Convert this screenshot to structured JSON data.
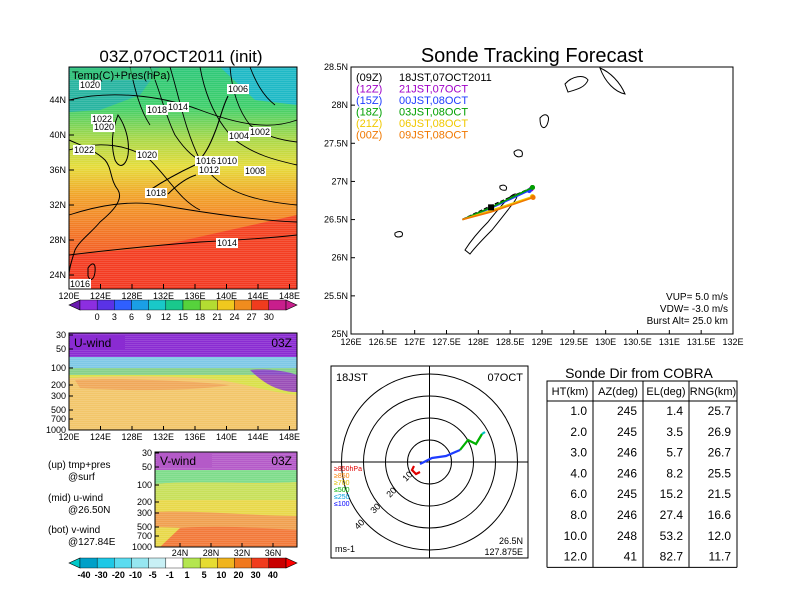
{
  "map_panel": {
    "title": "03Z,07OCT2011 (init)",
    "field_label": "Temp(C)+Pres(hPa)",
    "lat_labels": [
      "44N",
      "40N",
      "36N",
      "32N",
      "28N",
      "24N"
    ],
    "lon_labels": [
      "120E",
      "124E",
      "128E",
      "132E",
      "136E",
      "140E",
      "144E",
      "148E"
    ],
    "isobar_labels": [
      "1020",
      "1006",
      "1018",
      "1014",
      "1022",
      "1020",
      "1004",
      "1002",
      "1022",
      "1020",
      "1016",
      "1010",
      "1012",
      "1008",
      "1018",
      "1014",
      "1016"
    ],
    "colorbar_ticks": [
      "0",
      "3",
      "6",
      "9",
      "12",
      "15",
      "18",
      "21",
      "24",
      "27",
      "30"
    ]
  },
  "u_panel": {
    "label": "U-wind",
    "time": "03Z",
    "p_labels": [
      "30",
      "50",
      "100",
      "200",
      "300",
      "500",
      "700",
      "1000"
    ],
    "lon_labels": [
      "120E",
      "124E",
      "128E",
      "132E",
      "136E",
      "140E",
      "144E",
      "148E"
    ]
  },
  "v_panel": {
    "label": "V-wind",
    "time": "03Z",
    "p_labels": [
      "30",
      "50",
      "100",
      "200",
      "300",
      "500",
      "700",
      "1000"
    ],
    "lat_labels": [
      "24N",
      "28N",
      "32N",
      "36N"
    ]
  },
  "legend_notes": [
    "(up) tmp+pres",
    "@surf",
    "(mid) u-wind",
    "@26.50N",
    "(bot) v-wind",
    "@127.84E"
  ],
  "wind_colorbar_ticks": [
    "-40",
    "-30",
    "-20",
    "-10",
    "-5",
    "-1",
    "1",
    "5",
    "10",
    "20",
    "30",
    "40"
  ],
  "track_panel": {
    "title": "Sonde Tracking Forecast",
    "lat_labels": [
      "28.5N",
      "28N",
      "27.5N",
      "27N",
      "26.5N",
      "26N",
      "25.5N",
      "25N"
    ],
    "lon_labels": [
      "126E",
      "126.5E",
      "127E",
      "127.5E",
      "128E",
      "128.5E",
      "129E",
      "129.5E",
      "130E",
      "130.5E",
      "131E",
      "131.5E",
      "132E"
    ],
    "legend": [
      {
        "code": "(09Z)",
        "text": "18JST,07OCT2011",
        "color": "#000000"
      },
      {
        "code": "(12Z)",
        "text": "21JST,07OCT",
        "color": "#a000c8"
      },
      {
        "code": "(15Z)",
        "text": "00JST,08OCT",
        "color": "#1e3cff"
      },
      {
        "code": "(18Z)",
        "text": "03JST,08OCT",
        "color": "#00a000"
      },
      {
        "code": "(21Z)",
        "text": "06JST,08OCT",
        "color": "#f0c800"
      },
      {
        "code": "(00Z)",
        "text": "09JST,08OCT",
        "color": "#f07800"
      }
    ],
    "params": [
      "VUP= 5.0 m/s",
      "VDW= -3.0 m/s",
      "Burst Alt= 25.0 km"
    ]
  },
  "polar_panel": {
    "time_label": "18JST",
    "date_label": "07OCT",
    "ring_labels": [
      "10",
      "20",
      "30",
      "40"
    ],
    "level_legend": [
      {
        "text": "≥850hPa",
        "color": "#e00000"
      },
      {
        "text": "≥850",
        "color": "#ff8000"
      },
      {
        "text": "≥700",
        "color": "#e0c000"
      },
      {
        "text": "≤500",
        "color": "#00b000"
      },
      {
        "text": "≤250",
        "color": "#00a0e0"
      },
      {
        "text": "≤100",
        "color": "#0000ff"
      }
    ],
    "unit": "ms-1",
    "pos_lat": "26.5N",
    "pos_lon": "127.875E"
  },
  "table": {
    "title": "Sonde Dir from COBRA",
    "headers": [
      "HT(km)",
      "AZ(deg)",
      "EL(deg)",
      "RNG(km)"
    ],
    "rows": [
      [
        "1.0",
        "245",
        "1.4",
        "25.7"
      ],
      [
        "2.0",
        "245",
        "3.5",
        "26.9"
      ],
      [
        "3.0",
        "246",
        "5.7",
        "26.7"
      ],
      [
        "4.0",
        "246",
        "8.2",
        "25.5"
      ],
      [
        "6.0",
        "245",
        "15.2",
        "21.5"
      ],
      [
        "8.0",
        "246",
        "27.4",
        "16.6"
      ],
      [
        "10.0",
        "248",
        "53.2",
        "12.0"
      ],
      [
        "12.0",
        "41",
        "82.7",
        "11.7"
      ]
    ]
  },
  "chart_data": [
    {
      "type": "heatmap",
      "title": "03Z,07OCT2011 (init)",
      "subtitle": "Temp(C)+Pres(hPa)",
      "xlim": [
        120,
        149
      ],
      "ylim": [
        22.5,
        47.5
      ],
      "colorbar": [
        0,
        3,
        6,
        9,
        12,
        15,
        18,
        21,
        24,
        27,
        30
      ]
    },
    {
      "type": "heatmap",
      "title": "U-wind",
      "ylim": [
        1000,
        30
      ]
    },
    {
      "type": "heatmap",
      "title": "V-wind",
      "xlim": [
        22,
        38
      ],
      "ylim": [
        1000,
        30
      ]
    },
    {
      "type": "line",
      "title": "Sonde Tracking Forecast",
      "xlim": [
        126,
        132
      ],
      "ylim": [
        25,
        28.5
      ],
      "series": [
        {
          "name": "(09Z)",
          "color": "#000000",
          "x": [
            127.75,
            128.2,
            128.85
          ],
          "y": [
            26.5,
            26.68,
            26.92
          ]
        },
        {
          "name": "(12Z)",
          "color": "#a000c8",
          "x": [
            127.75,
            128.2,
            128.83
          ],
          "y": [
            26.5,
            26.66,
            26.9
          ]
        },
        {
          "name": "(15Z)",
          "color": "#1e3cff",
          "x": [
            127.75,
            128.2,
            128.8
          ],
          "y": [
            26.5,
            26.65,
            26.88
          ]
        },
        {
          "name": "(18Z)",
          "color": "#00a000",
          "x": [
            127.75,
            128.2,
            128.85
          ],
          "y": [
            26.5,
            26.66,
            26.92
          ]
        },
        {
          "name": "(21Z)",
          "color": "#f0c800",
          "x": [
            127.75,
            128.2,
            128.85
          ],
          "y": [
            26.5,
            26.62,
            26.8
          ]
        },
        {
          "name": "(00Z)",
          "color": "#f07800",
          "x": [
            127.75,
            128.2,
            128.86
          ],
          "y": [
            26.5,
            26.6,
            26.79
          ]
        }
      ]
    },
    {
      "type": "table",
      "title": "Sonde Dir from COBRA",
      "columns": [
        "HT(km)",
        "AZ(deg)",
        "EL(deg)",
        "RNG(km)"
      ],
      "rows": [
        [
          1.0,
          245,
          1.4,
          25.7
        ],
        [
          2.0,
          245,
          3.5,
          26.9
        ],
        [
          3.0,
          246,
          5.7,
          26.7
        ],
        [
          4.0,
          246,
          8.2,
          25.5
        ],
        [
          6.0,
          245,
          15.2,
          21.5
        ],
        [
          8.0,
          246,
          27.4,
          16.6
        ],
        [
          10.0,
          248,
          53.2,
          12.0
        ],
        [
          12.0,
          41,
          82.7,
          11.7
        ]
      ]
    }
  ]
}
